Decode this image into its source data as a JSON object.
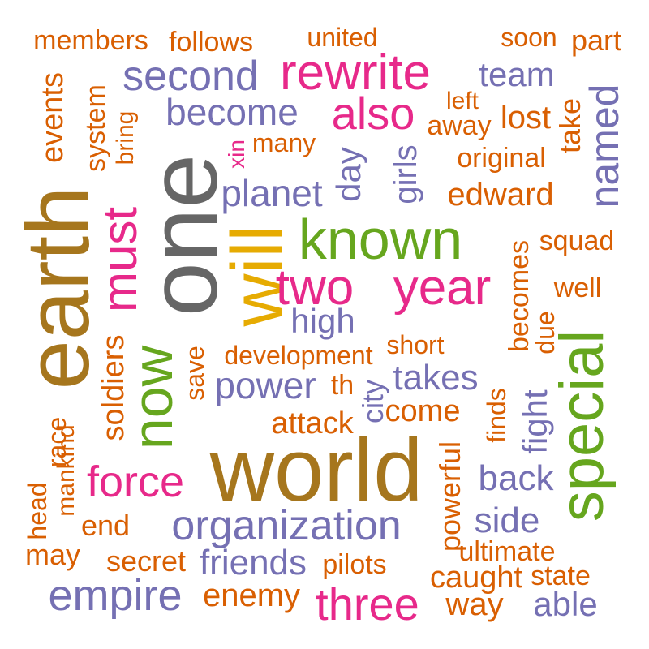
{
  "palette": {
    "orange": "#d95f02",
    "purple": "#7570b3",
    "magenta": "#e7298a",
    "green": "#66a61e",
    "gold": "#e6ab02",
    "brown": "#a6761d",
    "gray": "#666666"
  },
  "words": [
    {
      "text": "members",
      "color": "orange"
    },
    {
      "text": "follows",
      "color": "orange"
    },
    {
      "text": "united",
      "color": "orange"
    },
    {
      "text": "soon",
      "color": "orange"
    },
    {
      "text": "part",
      "color": "orange"
    },
    {
      "text": "second",
      "color": "purple"
    },
    {
      "text": "rewrite",
      "color": "magenta"
    },
    {
      "text": "team",
      "color": "purple"
    },
    {
      "text": "events",
      "color": "orange"
    },
    {
      "text": "system",
      "color": "orange"
    },
    {
      "text": "bring",
      "color": "orange"
    },
    {
      "text": "become",
      "color": "purple"
    },
    {
      "text": "also",
      "color": "magenta"
    },
    {
      "text": "left",
      "color": "orange"
    },
    {
      "text": "away",
      "color": "orange"
    },
    {
      "text": "lost",
      "color": "orange"
    },
    {
      "text": "take",
      "color": "orange"
    },
    {
      "text": "named",
      "color": "purple"
    },
    {
      "text": "many",
      "color": "orange"
    },
    {
      "text": "xin",
      "color": "magenta"
    },
    {
      "text": "one",
      "color": "gray"
    },
    {
      "text": "day",
      "color": "purple"
    },
    {
      "text": "girls",
      "color": "purple"
    },
    {
      "text": "original",
      "color": "orange"
    },
    {
      "text": "planet",
      "color": "purple"
    },
    {
      "text": "edward",
      "color": "orange"
    },
    {
      "text": "earth",
      "color": "brown"
    },
    {
      "text": "must",
      "color": "magenta"
    },
    {
      "text": "will",
      "color": "gold"
    },
    {
      "text": "known",
      "color": "green"
    },
    {
      "text": "squad",
      "color": "orange"
    },
    {
      "text": "becomes",
      "color": "orange"
    },
    {
      "text": "two",
      "color": "magenta"
    },
    {
      "text": "year",
      "color": "magenta"
    },
    {
      "text": "well",
      "color": "orange"
    },
    {
      "text": "high",
      "color": "purple"
    },
    {
      "text": "due",
      "color": "orange"
    },
    {
      "text": "special",
      "color": "green"
    },
    {
      "text": "now",
      "color": "green"
    },
    {
      "text": "soldiers",
      "color": "orange"
    },
    {
      "text": "save",
      "color": "orange"
    },
    {
      "text": "development",
      "color": "orange"
    },
    {
      "text": "short",
      "color": "orange"
    },
    {
      "text": "power",
      "color": "purple"
    },
    {
      "text": "th",
      "color": "orange"
    },
    {
      "text": "takes",
      "color": "purple"
    },
    {
      "text": "city",
      "color": "purple"
    },
    {
      "text": "come",
      "color": "orange"
    },
    {
      "text": "finds",
      "color": "orange"
    },
    {
      "text": "fight",
      "color": "purple"
    },
    {
      "text": "attack",
      "color": "orange"
    },
    {
      "text": "race",
      "color": "orange"
    },
    {
      "text": "head",
      "color": "orange"
    },
    {
      "text": "mankind",
      "color": "orange"
    },
    {
      "text": "world",
      "color": "brown"
    },
    {
      "text": "powerful",
      "color": "orange"
    },
    {
      "text": "force",
      "color": "magenta"
    },
    {
      "text": "back",
      "color": "purple"
    },
    {
      "text": "end",
      "color": "orange"
    },
    {
      "text": "organization",
      "color": "purple"
    },
    {
      "text": "side",
      "color": "purple"
    },
    {
      "text": "may",
      "color": "orange"
    },
    {
      "text": "secret",
      "color": "orange"
    },
    {
      "text": "friends",
      "color": "purple"
    },
    {
      "text": "pilots",
      "color": "orange"
    },
    {
      "text": "ultimate",
      "color": "orange"
    },
    {
      "text": "caught",
      "color": "orange"
    },
    {
      "text": "state",
      "color": "orange"
    },
    {
      "text": "empire",
      "color": "purple"
    },
    {
      "text": "enemy",
      "color": "orange"
    },
    {
      "text": "three",
      "color": "magenta"
    },
    {
      "text": "way",
      "color": "orange"
    },
    {
      "text": "able",
      "color": "purple"
    }
  ]
}
